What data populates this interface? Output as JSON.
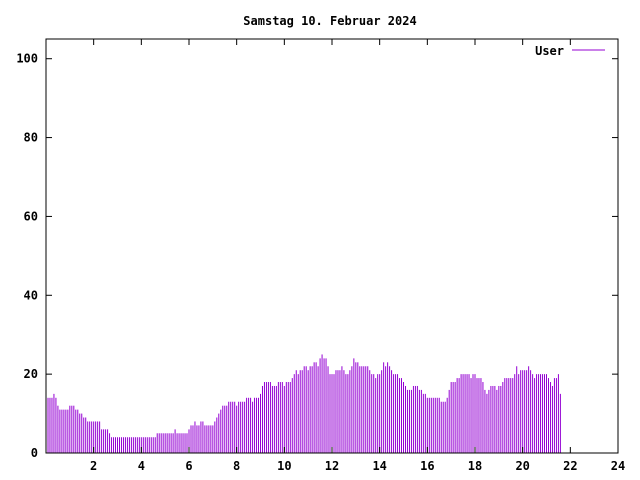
{
  "chart_data": {
    "type": "bar",
    "title": "Samstag 10. Februar 2024",
    "xlabel": "",
    "ylabel": "",
    "xlim": [
      0,
      24
    ],
    "ylim": [
      0,
      105
    ],
    "x_ticks": [
      2,
      4,
      6,
      8,
      10,
      12,
      14,
      16,
      18,
      20,
      22,
      24
    ],
    "x_tick_labels": [
      "2",
      "4",
      "6",
      "8",
      "10",
      "12",
      "14",
      "16",
      "18",
      "20",
      "22",
      "24"
    ],
    "y_ticks": [
      0,
      20,
      40,
      60,
      80,
      100
    ],
    "y_tick_labels": [
      "0",
      "20",
      "40",
      "60",
      "80",
      "100"
    ],
    "grid": false,
    "legend_position": "top-right",
    "series": [
      {
        "name": "User",
        "color": "#9400d3",
        "interval_minutes": 5,
        "values": [
          15,
          14,
          14,
          14,
          15,
          14,
          12,
          11,
          11,
          11,
          11,
          11,
          12,
          12,
          12,
          11,
          11,
          10,
          10,
          9,
          9,
          8,
          8,
          8,
          8,
          8,
          8,
          8,
          6,
          6,
          6,
          6,
          5,
          4,
          4,
          4,
          4,
          4,
          4,
          4,
          4,
          4,
          4,
          4,
          4,
          4,
          4,
          4,
          4,
          4,
          4,
          4,
          4,
          4,
          4,
          4,
          5,
          5,
          5,
          5,
          5,
          5,
          5,
          5,
          5,
          6,
          5,
          5,
          5,
          5,
          5,
          5,
          6,
          7,
          7,
          8,
          7,
          7,
          8,
          8,
          7,
          7,
          7,
          7,
          7,
          8,
          9,
          10,
          11,
          12,
          12,
          12,
          13,
          13,
          13,
          13,
          12,
          13,
          13,
          13,
          13,
          14,
          14,
          14,
          13,
          14,
          14,
          14,
          15,
          17,
          18,
          18,
          18,
          18,
          17,
          17,
          17,
          18,
          18,
          18,
          17,
          18,
          18,
          18,
          19,
          20,
          21,
          20,
          21,
          21,
          22,
          22,
          21,
          22,
          22,
          23,
          23,
          22,
          24,
          25,
          24,
          24,
          22,
          20,
          20,
          20,
          21,
          21,
          21,
          22,
          21,
          20,
          20,
          21,
          22,
          24,
          23,
          23,
          22,
          22,
          22,
          22,
          22,
          21,
          20,
          20,
          19,
          20,
          20,
          21,
          23,
          22,
          23,
          22,
          21,
          20,
          20,
          20,
          19,
          19,
          18,
          17,
          16,
          16,
          16,
          17,
          17,
          17,
          16,
          16,
          15,
          15,
          14,
          14,
          14,
          14,
          14,
          14,
          14,
          13,
          13,
          13,
          14,
          16,
          18,
          18,
          18,
          19,
          19,
          20,
          20,
          20,
          20,
          20,
          19,
          20,
          20,
          19,
          19,
          19,
          18,
          16,
          15,
          16,
          17,
          17,
          17,
          16,
          17,
          17,
          18,
          19,
          19,
          19,
          19,
          19,
          20,
          22,
          20,
          21,
          21,
          21,
          21,
          22,
          21,
          20,
          19,
          20,
          20,
          20,
          20,
          20,
          20,
          19,
          18,
          17,
          19,
          19,
          20,
          15
        ]
      }
    ]
  }
}
